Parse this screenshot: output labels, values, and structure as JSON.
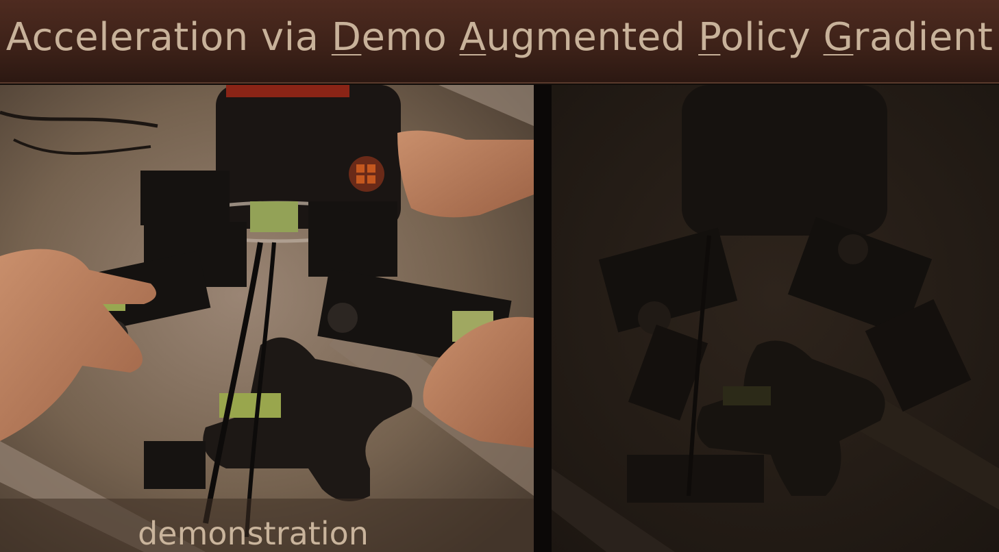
{
  "title": {
    "parts": [
      {
        "text": "Acceleration via ",
        "underline": false
      },
      {
        "text": "D",
        "underline": true
      },
      {
        "text": "emo ",
        "underline": false
      },
      {
        "text": "A",
        "underline": true
      },
      {
        "text": "ugmented ",
        "underline": false
      },
      {
        "text": "P",
        "underline": true
      },
      {
        "text": "olicy ",
        "underline": false
      },
      {
        "text": "G",
        "underline": true
      },
      {
        "text": "radient",
        "underline": false
      }
    ]
  },
  "left_panel": {
    "caption": "demonstration",
    "scene": "robot-hand-teleoperation-photo"
  },
  "right_panel": {
    "scene": "robot-hand-dimmed-photo"
  },
  "colors": {
    "title_bar": "#3c2118",
    "title_text": "#c8b29a",
    "caption_text": "#c9b49c"
  }
}
